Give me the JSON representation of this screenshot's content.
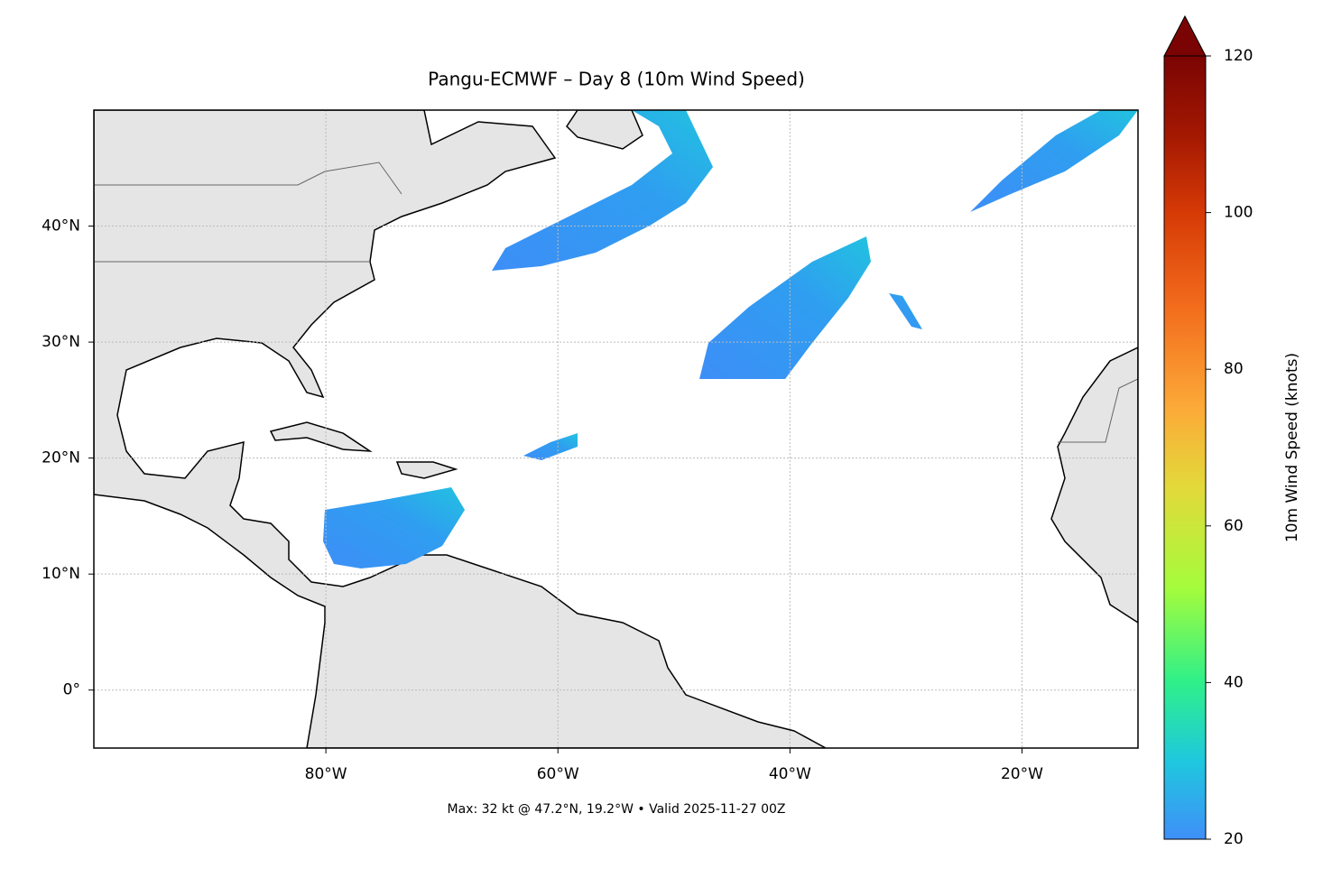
{
  "chart_data": {
    "type": "map",
    "title": "Pangu-ECMWF – Day 8 (10m Wind Speed)",
    "xlim": [
      -100,
      -10
    ],
    "ylim": [
      -5,
      50
    ],
    "xticks": [
      {
        "value": -80,
        "label": "80°W"
      },
      {
        "value": -60,
        "label": "60°W"
      },
      {
        "value": -40,
        "label": "40°W"
      },
      {
        "value": -20,
        "label": "20°W"
      }
    ],
    "yticks": [
      {
        "value": 0,
        "label": "0°"
      },
      {
        "value": 10,
        "label": "10°N"
      },
      {
        "value": 20,
        "label": "20°N"
      },
      {
        "value": 30,
        "label": "30°N"
      },
      {
        "value": 40,
        "label": "40°N"
      }
    ],
    "grid": true,
    "footnote": "Max: 32 kt @ 47.2°N, 19.2°W • Valid 2025-11-27 00Z",
    "colorbar": {
      "label": "10m Wind Speed (knots)",
      "lim": [
        20,
        120
      ],
      "ticks": [
        20,
        40,
        60,
        80,
        100,
        120
      ],
      "extend": "max"
    }
  }
}
